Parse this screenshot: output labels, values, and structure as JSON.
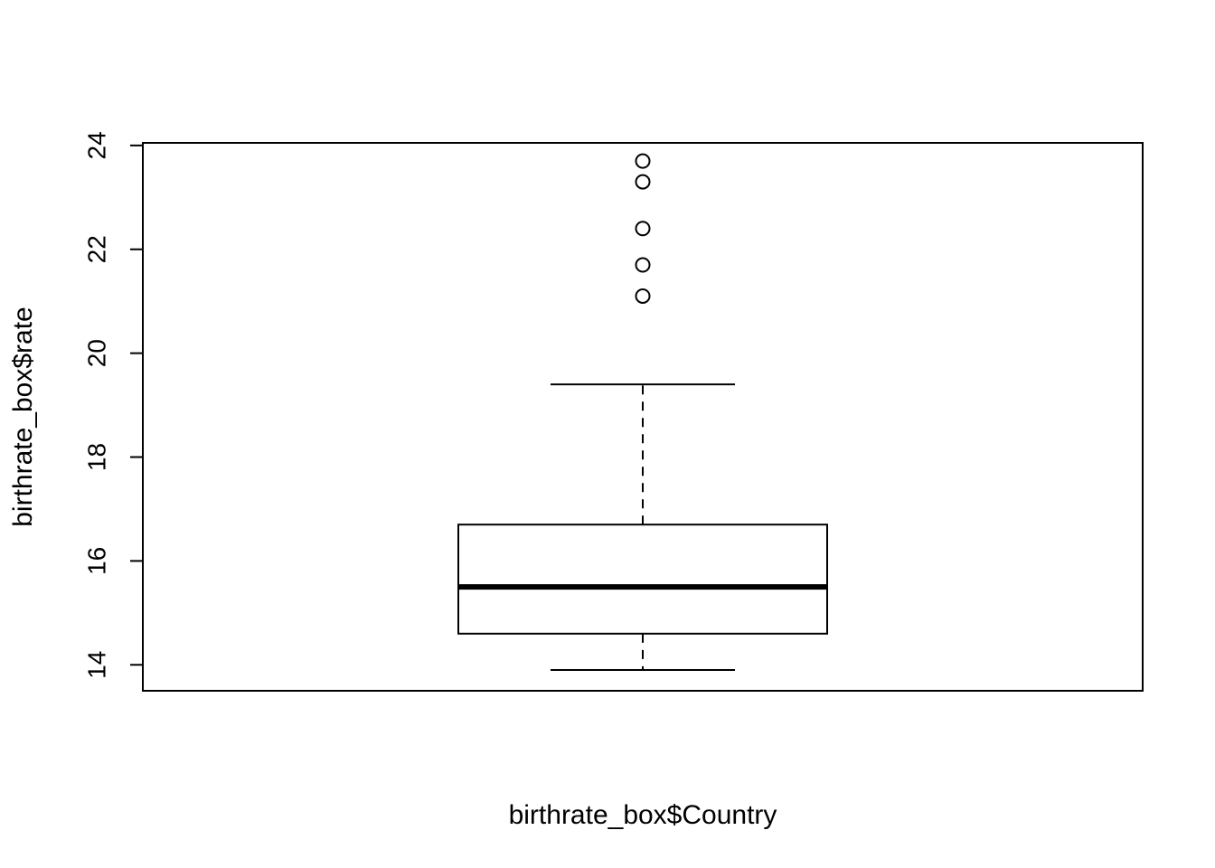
{
  "chart_data": {
    "type": "box",
    "title": "",
    "xlabel": "birthrate_box$Country",
    "ylabel": "birthrate_box$rate",
    "ylim": [
      13.5,
      24.05
    ],
    "yticks": [
      14,
      16,
      18,
      20,
      22,
      24
    ],
    "grid": false,
    "legend": "none",
    "colors": {
      "stroke": "#000000",
      "background": "#ffffff"
    },
    "boxes": [
      {
        "min": 13.9,
        "q1": 14.6,
        "median": 15.5,
        "q3": 16.7,
        "max": 19.4,
        "outliers": [
          21.1,
          21.7,
          22.4,
          23.3,
          23.7
        ]
      }
    ]
  }
}
